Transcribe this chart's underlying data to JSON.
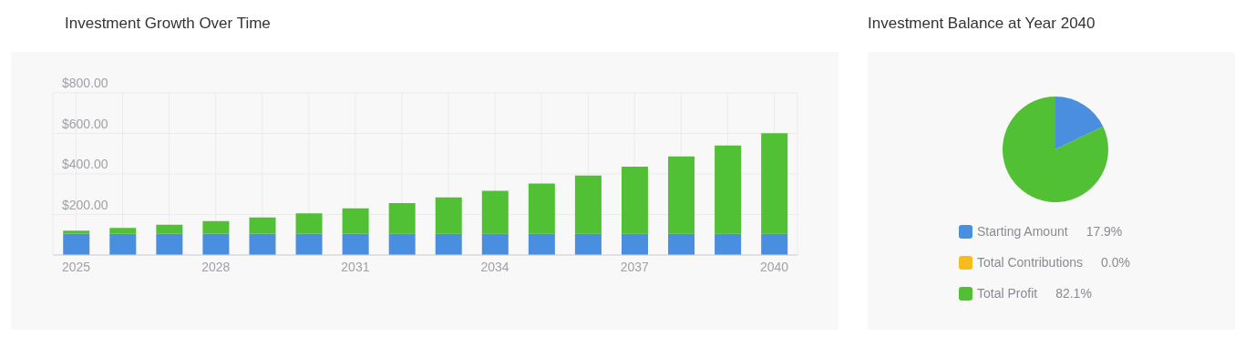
{
  "chart_data": [
    {
      "type": "bar",
      "title": "Investment Growth Over Time",
      "stacked": true,
      "grid": true,
      "categories": [
        "2025",
        null,
        null,
        "2028",
        null,
        null,
        "2031",
        null,
        null,
        "2034",
        null,
        null,
        "2037",
        null,
        null,
        "2040"
      ],
      "series": [
        {
          "color": "#4a8ee0",
          "values": [
            105,
            105,
            105,
            105,
            105,
            105,
            105,
            105,
            105,
            105,
            105,
            105,
            105,
            105,
            105,
            105
          ]
        },
        {
          "color": "#52c034",
          "values": [
            15,
            29,
            45,
            62,
            80,
            101,
            125,
            151,
            179,
            212,
            248,
            287,
            331,
            382,
            436,
            496
          ]
        }
      ],
      "ylim": [
        0,
        800
      ],
      "yticks": [
        {
          "value": 0,
          "label": null
        },
        {
          "value": 200,
          "label": "$200.00"
        },
        {
          "value": 400,
          "label": "$400.00"
        },
        {
          "value": 600,
          "label": "$600.00"
        },
        {
          "value": 800,
          "label": "$800.00"
        }
      ]
    },
    {
      "type": "pie",
      "title": "Investment Balance at Year 2040",
      "legend": "bottom",
      "data_labels": true,
      "categories": [
        "Starting Amount",
        "Total Contributions",
        "Total Profit"
      ],
      "values": [
        17.9,
        0.0,
        82.1
      ],
      "value_labels": [
        "17.9%",
        "0.0%",
        "82.1%"
      ],
      "colors": [
        "#4a8ee0",
        "#f4bc1c",
        "#52c034"
      ]
    }
  ]
}
